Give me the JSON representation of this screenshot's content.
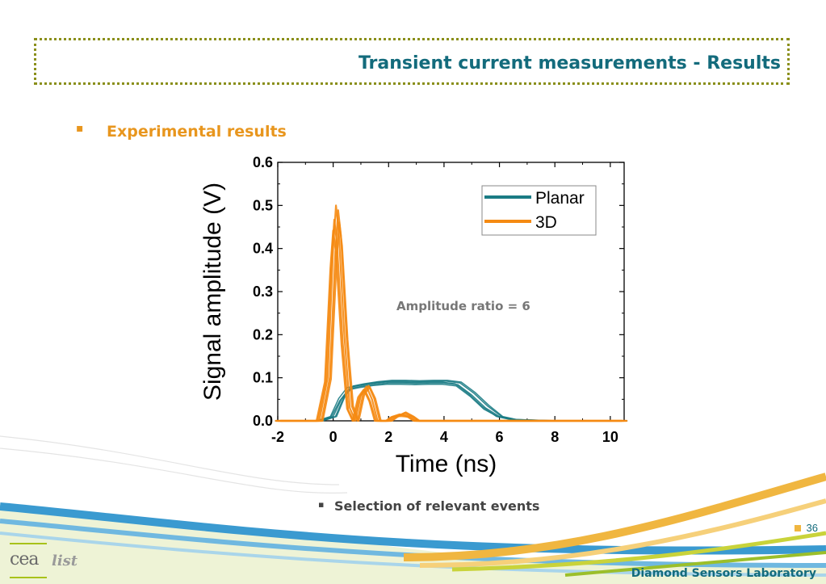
{
  "slide": {
    "title": "Transient current measurements - Results",
    "section_heading": "Experimental results",
    "caption": "Selection of relevant events",
    "page_number": "36",
    "footer": "Diamond Sensors Laboratory",
    "logo_text": "cea",
    "logo_sub": "list"
  },
  "colors": {
    "title": "#136b7c",
    "accent": "#e8961e",
    "planar": "#1a7b84",
    "d3": "#f58a12"
  },
  "chart_data": {
    "type": "line",
    "xlabel": "Time (ns)",
    "ylabel": "Signal amplitude (V)",
    "xlim": [
      -2,
      10.5
    ],
    "ylim": [
      0,
      0.6
    ],
    "x_ticks": [
      "-2",
      "0",
      "2",
      "4",
      "6",
      "8",
      "10"
    ],
    "y_ticks": [
      "0.0",
      "0.1",
      "0.2",
      "0.3",
      "0.4",
      "0.5",
      "0.6"
    ],
    "legend_position": "top-right",
    "annotation": "Amplitude ratio = 6",
    "series": [
      {
        "name": "Planar",
        "color": "#1a7b84",
        "x": [
          -2,
          -0.5,
          0,
          0.3,
          0.6,
          1,
          1.5,
          2,
          2.5,
          3,
          3.5,
          4,
          4.5,
          5,
          5.5,
          6,
          6.5,
          8,
          10.5
        ],
        "y": [
          0,
          0,
          0.01,
          0.05,
          0.075,
          0.08,
          0.085,
          0.088,
          0.088,
          0.087,
          0.088,
          0.088,
          0.084,
          0.06,
          0.03,
          0.01,
          0.003,
          0,
          0
        ]
      },
      {
        "name": "3D",
        "color": "#f58a12",
        "x": [
          -2,
          -0.5,
          -0.2,
          0,
          0.1,
          0.2,
          0.4,
          0.6,
          0.8,
          1,
          1.2,
          1.4,
          1.6,
          2,
          2.2,
          2.5,
          2.8,
          3,
          4,
          6,
          10.5
        ],
        "y": [
          0,
          0,
          0.1,
          0.4,
          0.5,
          0.44,
          0.2,
          0.03,
          0,
          0.06,
          0.08,
          0.05,
          0,
          0,
          0.01,
          0.015,
          0.01,
          0,
          0,
          0,
          0
        ]
      }
    ]
  }
}
